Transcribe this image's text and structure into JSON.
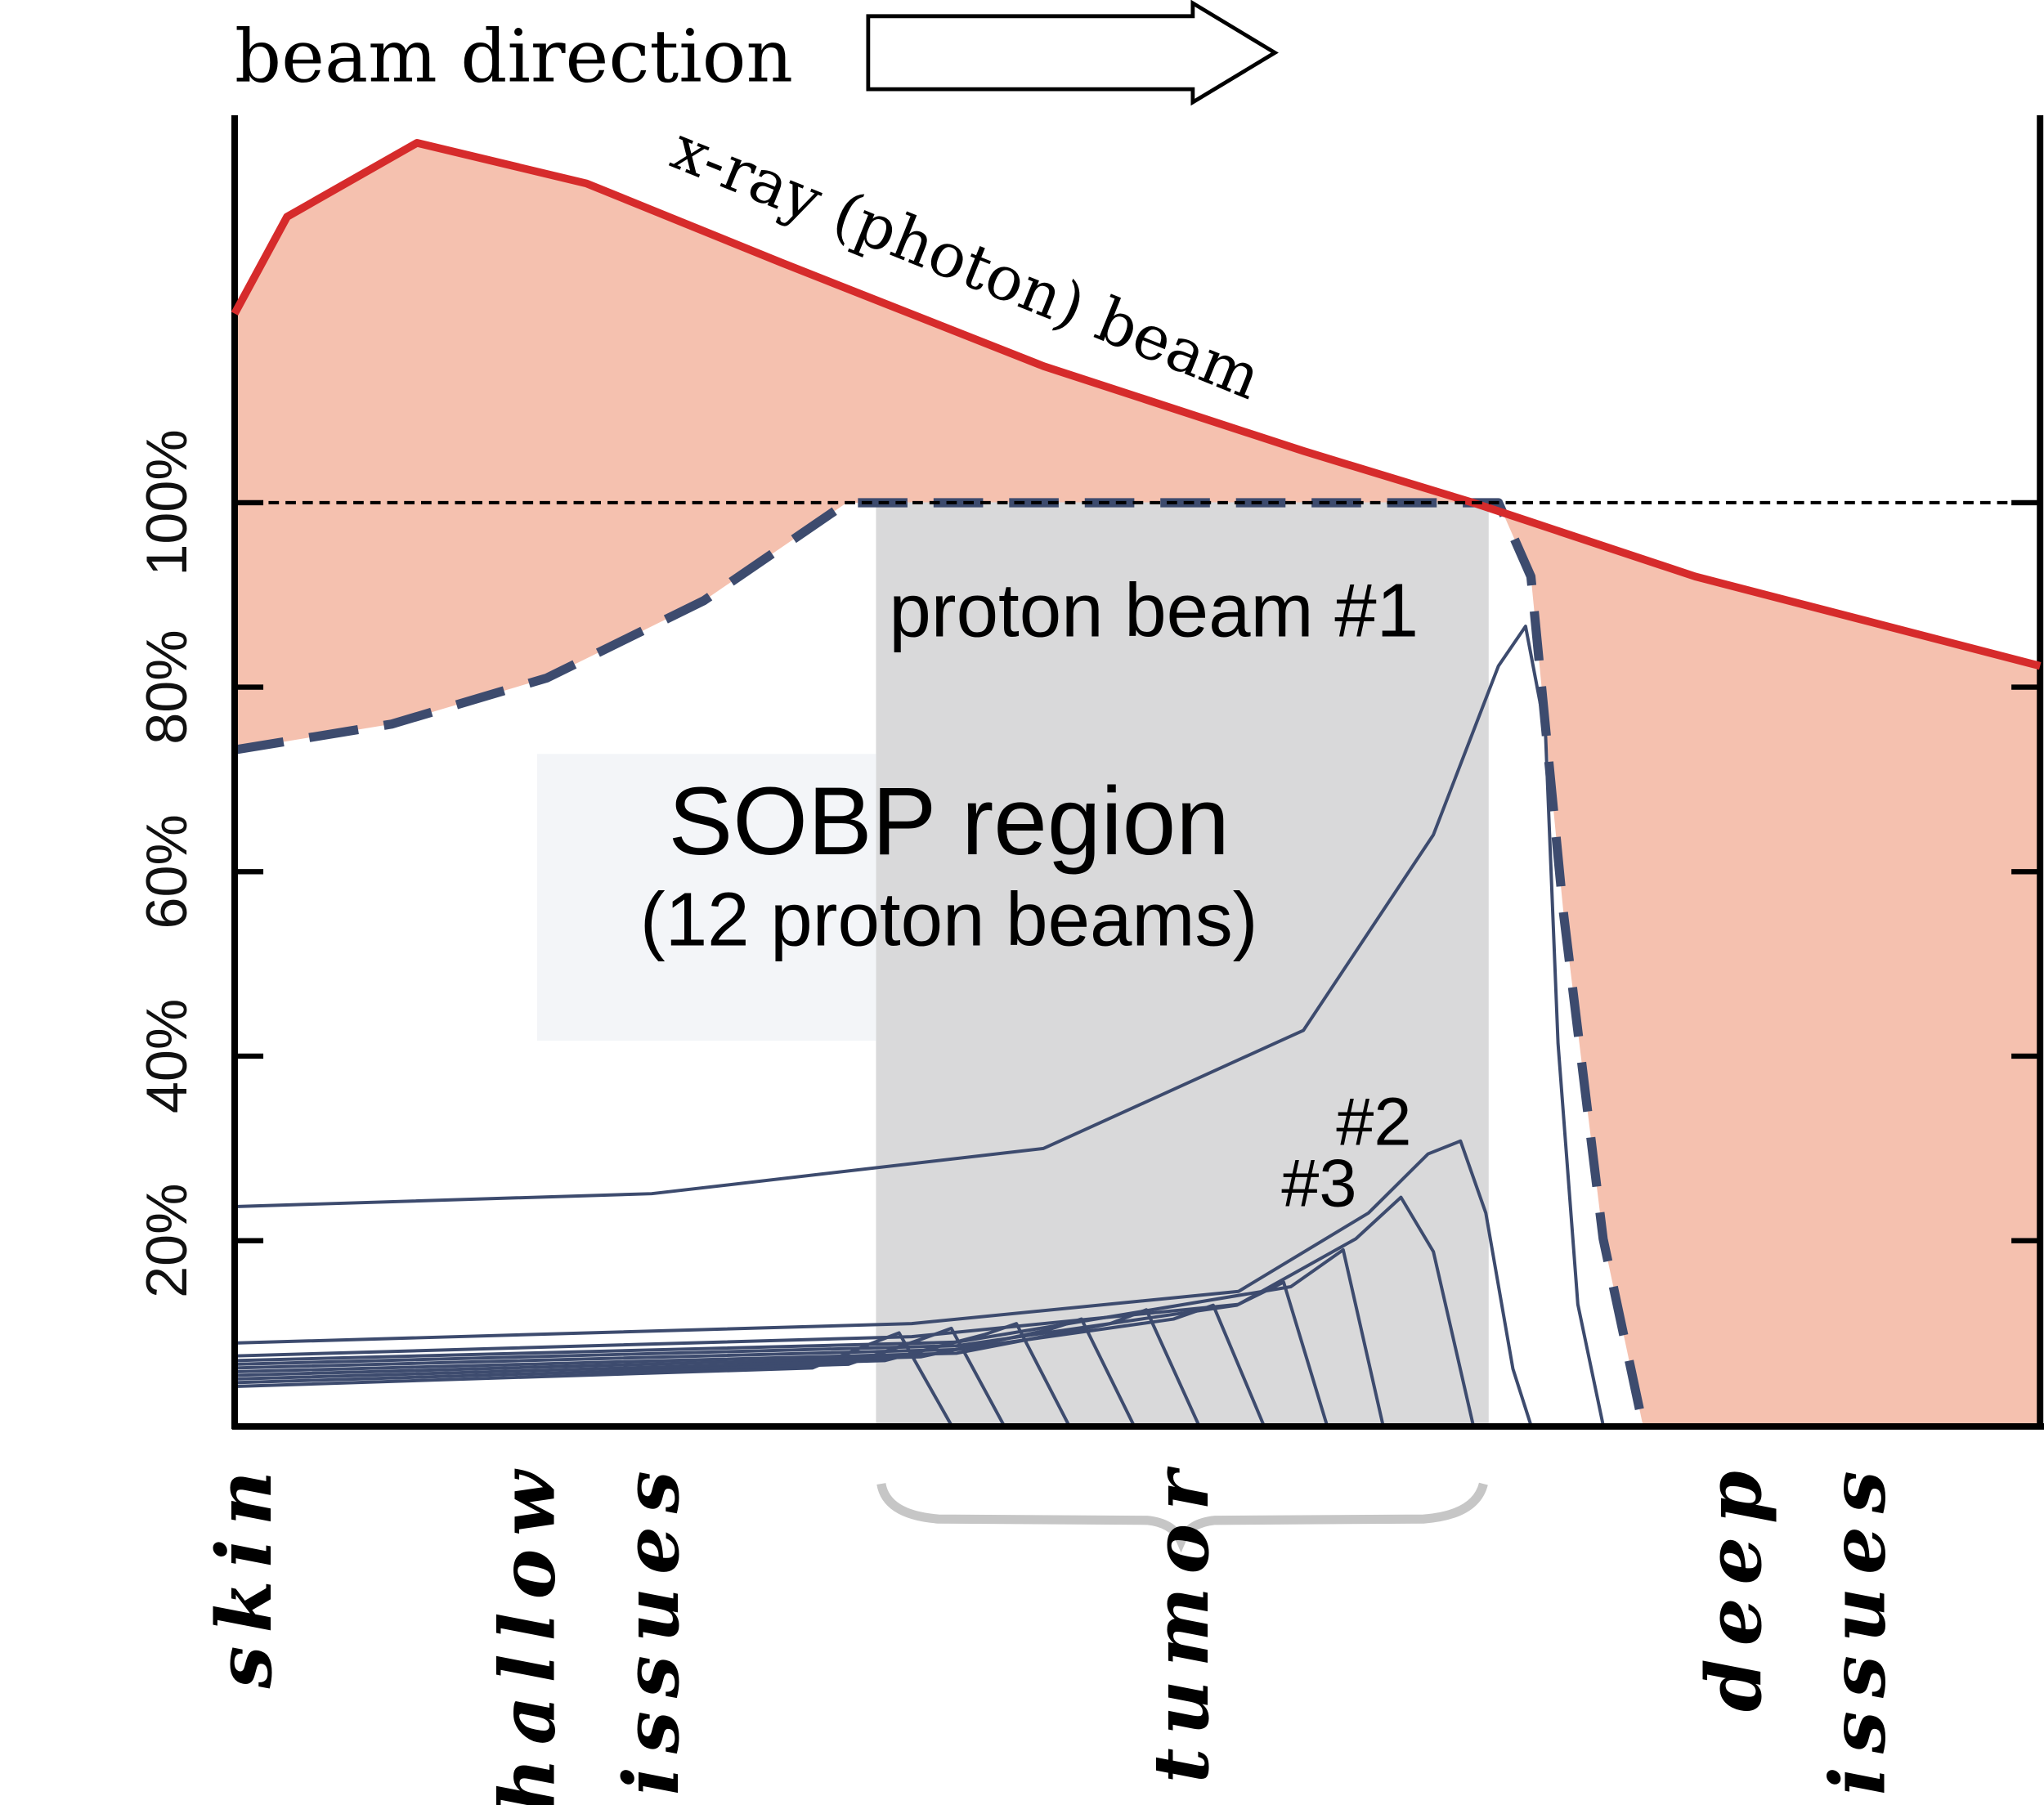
{
  "chart_data": {
    "type": "line",
    "header": "beam direction",
    "annotations": {
      "sobp_title": "SOBP region",
      "sobp_subtitle": "(12 proton beams)",
      "beam2": "#2",
      "beam3": "#3"
    },
    "xlim": [
      0,
      100
    ],
    "xticks": [
      {
        "value": 0.4,
        "label": "skin"
      },
      {
        "value": 19.5,
        "label": "shallow tissues"
      },
      {
        "value": 52.3,
        "label": "tumor"
      },
      {
        "value": 86.3,
        "label": "deep tissues"
      }
    ],
    "ylim": [
      0,
      142
    ],
    "yticks": [
      {
        "value": 20,
        "label": "20%"
      },
      {
        "value": 40,
        "label": "40%"
      },
      {
        "value": 60,
        "label": "60%"
      },
      {
        "value": 80,
        "label": "80%"
      },
      {
        "value": 100,
        "label": "100%"
      }
    ],
    "reference_line": 100,
    "series": [
      {
        "name": "x-ray (photon) beam",
        "color": "#d62b2b",
        "fill": "#f5c1af",
        "x": [
          0,
          2.9,
          10.1,
          19.5,
          30.3,
          44.8,
          59.2,
          68.6,
          80.9,
          100
        ],
        "values": [
          120.5,
          131,
          139,
          134.6,
          126,
          114.8,
          105.6,
          100,
          92,
          82.3
        ]
      },
      {
        "color": "#3d4b6e",
        "fill": "#ffffff",
        "dashed": true,
        "x": [
          0,
          8.7,
          17.3,
          26,
          33.9,
          70,
          71.8,
          73.6,
          75.8,
          78
        ],
        "values": [
          73.2,
          76,
          81,
          89.4,
          100,
          100,
          92,
          55.5,
          20.2,
          0
        ]
      },
      {
        "name": "proton beam #1",
        "color": "#3d4b6e",
        "x": [
          0,
          23.1,
          44.8,
          59.2,
          66.4,
          70,
          71.5,
          72.6,
          73.3,
          74.4,
          75.8
        ],
        "values": [
          23.7,
          25.1,
          30,
          42.8,
          64,
          82.3,
          86.6,
          75.3,
          41.4,
          13.1,
          0
        ]
      },
      {
        "color": "#3d4b6e",
        "x": [
          0,
          37.5,
          55.6,
          62.8,
          66.1,
          67.9,
          69.3,
          70.8,
          71.8
        ],
        "values": [
          8.9,
          11,
          14.5,
          23,
          29.4,
          30.8,
          23,
          6.1,
          0
        ]
      },
      {
        "color": "#3d4b6e",
        "x": [
          0,
          37.5,
          55.6,
          62.1,
          64.6,
          66.4,
          68.6
        ],
        "values": [
          7.5,
          9.6,
          13.1,
          20.2,
          24.7,
          18.8,
          0
        ]
      },
      {
        "color": "#3d4b6e",
        "x": [
          0,
          40,
          58.5,
          61.4,
          63.6
        ],
        "values": [
          7,
          9,
          15,
          19,
          0
        ]
      },
      {
        "color": "#3d4b6e",
        "x": [
          0,
          40,
          55.5,
          58.1,
          60.5
        ],
        "values": [
          6.6,
          8.6,
          13,
          15.5,
          0
        ]
      },
      {
        "color": "#3d4b6e",
        "x": [
          0,
          40,
          52,
          54.2,
          57
        ],
        "values": [
          6.2,
          8.2,
          11.5,
          13,
          0
        ]
      },
      {
        "color": "#3d4b6e",
        "x": [
          0,
          40,
          48.5,
          50.5,
          53.4
        ],
        "values": [
          5.8,
          7.8,
          11,
          12.5,
          0
        ]
      },
      {
        "color": "#3d4b6e",
        "x": [
          0,
          38,
          45,
          46.9,
          49.8
        ],
        "values": [
          5.4,
          7.4,
          10.3,
          11.5,
          0
        ]
      },
      {
        "color": "#3d4b6e",
        "x": [
          0,
          36,
          41.5,
          43.3,
          46.2
        ],
        "values": [
          5,
          7,
          9.8,
          11,
          0
        ]
      },
      {
        "color": "#3d4b6e",
        "x": [
          0,
          34,
          38,
          39.7,
          42.6
        ],
        "values": [
          4.6,
          6.6,
          9.3,
          10.5,
          0
        ]
      },
      {
        "color": "#3d4b6e",
        "x": [
          0,
          32,
          35.2,
          36.8,
          39.7
        ],
        "values": [
          4.2,
          6.2,
          8.8,
          10,
          0
        ]
      }
    ]
  }
}
